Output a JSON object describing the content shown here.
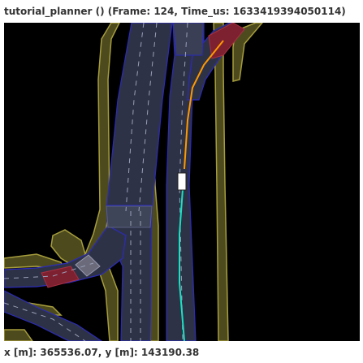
{
  "window": {
    "title": "tutorial_planner () (Frame: 124, Time_us: 1633419394050114)"
  },
  "status": {
    "coordinates": "x [m]: 365536.07, y [m]: 143190.38"
  },
  "colors": {
    "background": "#000000",
    "roadside": "#4d4a1e",
    "roadside_edge": "#a69d3c",
    "lane_fill": "#2e3246",
    "lane_border": "#2b2bb8",
    "lane_divider": "#9aa0b8",
    "crosswalk": "#7d2030",
    "planned_path": "#ff9900",
    "driven_path": "#18e0c0",
    "ego_vehicle": "#ffffff"
  }
}
